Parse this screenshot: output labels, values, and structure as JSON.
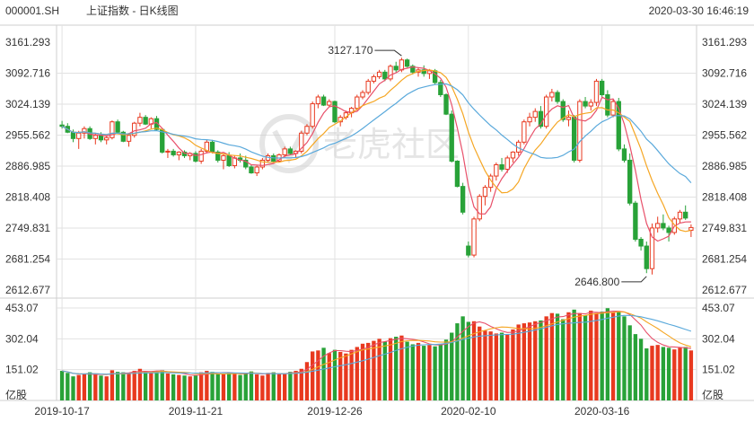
{
  "header": {
    "code": "000001.SH",
    "name": "上证指数 - 日K线图",
    "datetime": "2020-03-30 16:46:19"
  },
  "watermark": {
    "text": "老虎社区",
    "icon": "tiger-logo-icon"
  },
  "colors": {
    "up": "#e8391f",
    "down": "#28a238",
    "ma5": "#e8506a",
    "ma10": "#f5a623",
    "ma20": "#5aa9db",
    "grid": "#e2e2e2"
  },
  "chart_data": {
    "type": "candlestick",
    "price_axis": {
      "ticks": [
        "3161.293",
        "3092.716",
        "3024.139",
        "2955.562",
        "2886.985",
        "2818.408",
        "2749.831",
        "2681.254",
        "2612.677"
      ],
      "ylim": [
        2612.677,
        3161.293
      ]
    },
    "volume_axis": {
      "ticks": [
        "453.07",
        "302.04",
        "151.02"
      ],
      "unit": "亿股",
      "ylim": [
        0,
        453.07
      ]
    },
    "x_labels": [
      "2019-10-17",
      "2019-11-21",
      "2019-12-26",
      "2020-02-10",
      "2020-03-16"
    ],
    "annotations": [
      {
        "text": "3127.170",
        "value": 3127.17,
        "index": 61
      },
      {
        "text": "2646.800",
        "value": 2646.8,
        "index": 105
      }
    ],
    "ohlc": [
      [
        2978,
        2987,
        2970,
        2975
      ],
      [
        2975,
        2982,
        2960,
        2962
      ],
      [
        2962,
        2968,
        2940,
        2948
      ],
      [
        2948,
        2965,
        2925,
        2960
      ],
      [
        2960,
        2975,
        2948,
        2970
      ],
      [
        2970,
        2975,
        2945,
        2948
      ],
      [
        2948,
        2960,
        2935,
        2955
      ],
      [
        2955,
        2962,
        2940,
        2945
      ],
      [
        2945,
        2955,
        2935,
        2950
      ],
      [
        2950,
        2988,
        2946,
        2985
      ],
      [
        2985,
        2990,
        2960,
        2962
      ],
      [
        2962,
        2965,
        2940,
        2942
      ],
      [
        2942,
        2960,
        2930,
        2955
      ],
      [
        2955,
        2985,
        2950,
        2982
      ],
      [
        2982,
        3005,
        2975,
        2995
      ],
      [
        2995,
        3000,
        2978,
        2980
      ],
      [
        2980,
        2995,
        2970,
        2992
      ],
      [
        2992,
        2998,
        2965,
        2968
      ],
      [
        2968,
        2970,
        2915,
        2918
      ],
      [
        2918,
        2925,
        2905,
        2920
      ],
      [
        2920,
        2925,
        2908,
        2912
      ],
      [
        2912,
        2920,
        2900,
        2918
      ],
      [
        2918,
        2922,
        2905,
        2910
      ],
      [
        2910,
        2918,
        2900,
        2915
      ],
      [
        2915,
        2920,
        2895,
        2898
      ],
      [
        2898,
        2925,
        2892,
        2920
      ],
      [
        2920,
        2945,
        2915,
        2940
      ],
      [
        2940,
        2945,
        2915,
        2918
      ],
      [
        2918,
        2922,
        2895,
        2900
      ],
      [
        2900,
        2915,
        2880,
        2910
      ],
      [
        2910,
        2918,
        2885,
        2888
      ],
      [
        2888,
        2910,
        2882,
        2905
      ],
      [
        2905,
        2915,
        2895,
        2900
      ],
      [
        2900,
        2910,
        2880,
        2885
      ],
      [
        2885,
        2890,
        2870,
        2872
      ],
      [
        2872,
        2888,
        2865,
        2885
      ],
      [
        2885,
        2905,
        2880,
        2900
      ],
      [
        2900,
        2915,
        2895,
        2910
      ],
      [
        2910,
        2915,
        2895,
        2898
      ],
      [
        2898,
        2915,
        2895,
        2912
      ],
      [
        2912,
        2930,
        2905,
        2925
      ],
      [
        2925,
        2930,
        2912,
        2915
      ],
      [
        2915,
        2922,
        2905,
        2920
      ],
      [
        2920,
        2965,
        2915,
        2960
      ],
      [
        2960,
        2980,
        2955,
        2975
      ],
      [
        2975,
        3030,
        2970,
        3025
      ],
      [
        3025,
        3045,
        3015,
        3040
      ],
      [
        3040,
        3045,
        3020,
        3022
      ],
      [
        3022,
        3035,
        3018,
        3030
      ],
      [
        3030,
        3032,
        2982,
        2985
      ],
      [
        2985,
        3000,
        2975,
        2995
      ],
      [
        2995,
        3010,
        2990,
        3005
      ],
      [
        3005,
        3018,
        2995,
        3015
      ],
      [
        3015,
        3045,
        3010,
        3040
      ],
      [
        3040,
        3055,
        3035,
        3050
      ],
      [
        3050,
        3080,
        3045,
        3075
      ],
      [
        3075,
        3090,
        3070,
        3085
      ],
      [
        3085,
        3100,
        3080,
        3095
      ],
      [
        3095,
        3100,
        3075,
        3080
      ],
      [
        3080,
        3112,
        3075,
        3108
      ],
      [
        3108,
        3118,
        3095,
        3100
      ],
      [
        3100,
        3127,
        3095,
        3122
      ],
      [
        3122,
        3125,
        3105,
        3108
      ],
      [
        3108,
        3112,
        3090,
        3095
      ],
      [
        3095,
        3105,
        3085,
        3100
      ],
      [
        3100,
        3110,
        3085,
        3092
      ],
      [
        3092,
        3102,
        3080,
        3098
      ],
      [
        3098,
        3102,
        3068,
        3072
      ],
      [
        3072,
        3078,
        3040,
        3045
      ],
      [
        3045,
        3048,
        3000,
        3002
      ],
      [
        3002,
        3010,
        2895,
        2898
      ],
      [
        2898,
        2900,
        2840,
        2842
      ],
      [
        2842,
        2850,
        2780,
        2785
      ],
      [
        2710,
        2720,
        2685,
        2690
      ],
      [
        2690,
        2775,
        2685,
        2770
      ],
      [
        2770,
        2825,
        2765,
        2820
      ],
      [
        2820,
        2845,
        2800,
        2840
      ],
      [
        2840,
        2870,
        2830,
        2865
      ],
      [
        2865,
        2895,
        2855,
        2890
      ],
      [
        2890,
        2905,
        2875,
        2880
      ],
      [
        2880,
        2910,
        2872,
        2905
      ],
      [
        2905,
        2920,
        2895,
        2918
      ],
      [
        2918,
        2945,
        2910,
        2940
      ],
      [
        2940,
        2990,
        2935,
        2985
      ],
      [
        2985,
        3005,
        2975,
        2995
      ],
      [
        2995,
        3015,
        2985,
        3008
      ],
      [
        3008,
        3020,
        2970,
        2975
      ],
      [
        2975,
        3045,
        2970,
        3040
      ],
      [
        3040,
        3058,
        3030,
        3050
      ],
      [
        3050,
        3055,
        3025,
        3030
      ],
      [
        3030,
        3035,
        2985,
        2990
      ],
      [
        2990,
        3010,
        2975,
        2995
      ],
      [
        2995,
        3000,
        2895,
        2900
      ],
      [
        2900,
        3035,
        2895,
        3030
      ],
      [
        3030,
        3040,
        3015,
        3020
      ],
      [
        3020,
        3035,
        3010,
        3028
      ],
      [
        3028,
        3080,
        3020,
        3075
      ],
      [
        3075,
        3080,
        3040,
        3045
      ],
      [
        3045,
        3055,
        2995,
        3000
      ],
      [
        3000,
        3035,
        2995,
        3030
      ],
      [
        3030,
        3038,
        2920,
        2925
      ],
      [
        2925,
        2935,
        2895,
        2900
      ],
      [
        2900,
        2915,
        2800,
        2805
      ],
      [
        2805,
        2810,
        2720,
        2725
      ],
      [
        2725,
        2730,
        2700,
        2710
      ],
      [
        2710,
        2720,
        2650,
        2660
      ],
      [
        2660,
        2760,
        2647,
        2750
      ],
      [
        2750,
        2775,
        2740,
        2760
      ],
      [
        2760,
        2780,
        2745,
        2750
      ],
      [
        2750,
        2755,
        2720,
        2740
      ],
      [
        2740,
        2775,
        2735,
        2770
      ],
      [
        2770,
        2790,
        2760,
        2785
      ],
      [
        2785,
        2800,
        2768,
        2772
      ],
      [
        2745,
        2758,
        2730,
        2751
      ]
    ],
    "volume": [
      145,
      135,
      118,
      125,
      128,
      138,
      128,
      122,
      118,
      148,
      140,
      138,
      132,
      145,
      155,
      142,
      135,
      145,
      148,
      132,
      128,
      125,
      122,
      118,
      122,
      138,
      145,
      140,
      132,
      128,
      138,
      130,
      125,
      135,
      142,
      128,
      122,
      135,
      138,
      128,
      132,
      140,
      145,
      155,
      188,
      240,
      245,
      258,
      232,
      248,
      238,
      230,
      248,
      262,
      278,
      282,
      292,
      302,
      288,
      305,
      312,
      318,
      288,
      275,
      282,
      268,
      272,
      265,
      275,
      298,
      332,
      378,
      412,
      385,
      388,
      362,
      342,
      338,
      328,
      332,
      325,
      348,
      372,
      378,
      382,
      388,
      392,
      412,
      428,
      425,
      398,
      432,
      445,
      428,
      418,
      440,
      428,
      435,
      452,
      432,
      438,
      412,
      368,
      325,
      302,
      255,
      268,
      272,
      262,
      258,
      250,
      258,
      262,
      245
    ],
    "ma5": null,
    "ma10": null,
    "ma20": null
  }
}
